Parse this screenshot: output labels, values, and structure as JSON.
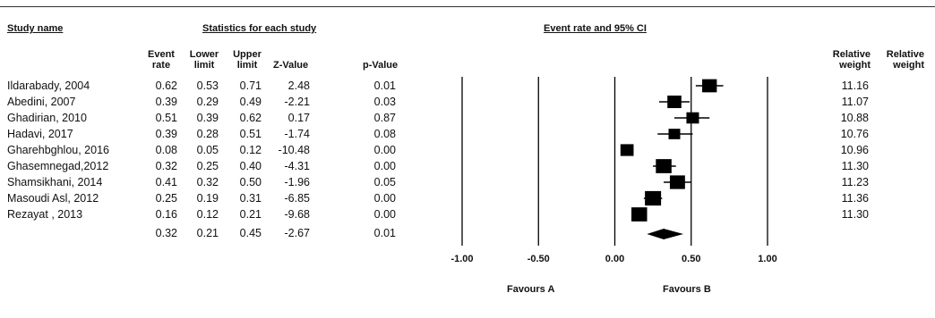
{
  "headers": {
    "study_name": "Study name",
    "statistics": "Statistics for each study",
    "plot_title": "Event rate and 95% CI",
    "event_rate": [
      "Event",
      "rate"
    ],
    "lower_limit": [
      "Lower",
      "limit"
    ],
    "upper_limit": [
      "Upper",
      "limit"
    ],
    "z_value": "Z-Value",
    "p_value": "p-Value",
    "relative_weight_1": [
      "Relative",
      "weight"
    ],
    "relative_weight_2": [
      "Relative",
      "weight"
    ]
  },
  "rows": [
    {
      "study": "Ildarabady, 2004",
      "rate": "0.62",
      "lower": "0.53",
      "upper": "0.71",
      "z": "2.48",
      "p": "0.01",
      "weight": "11.16"
    },
    {
      "study": "Abedini, 2007",
      "rate": "0.39",
      "lower": "0.29",
      "upper": "0.49",
      "z": "-2.21",
      "p": "0.03",
      "weight": "11.07"
    },
    {
      "study": "Ghadirian, 2010",
      "rate": "0.51",
      "lower": "0.39",
      "upper": "0.62",
      "z": "0.17",
      "p": "0.87",
      "weight": "10.88"
    },
    {
      "study": "Hadavi, 2017",
      "rate": "0.39",
      "lower": "0.28",
      "upper": "0.51",
      "z": "-1.74",
      "p": "0.08",
      "weight": "10.76"
    },
    {
      "study": "Gharehbghlou, 2016",
      "rate": "0.08",
      "lower": "0.05",
      "upper": "0.12",
      "z": "-10.48",
      "p": "0.00",
      "weight": "10.96"
    },
    {
      "study": "Ghasemnegad,2012",
      "rate": "0.32",
      "lower": "0.25",
      "upper": "0.40",
      "z": "-4.31",
      "p": "0.00",
      "weight": "11.30"
    },
    {
      "study": "Shamsikhani, 2014",
      "rate": "0.41",
      "lower": "0.32",
      "upper": "0.50",
      "z": "-1.96",
      "p": "0.05",
      "weight": "11.23"
    },
    {
      "study": "Masoudi Asl, 2012",
      "rate": "0.25",
      "lower": "0.19",
      "upper": "0.31",
      "z": "-6.85",
      "p": "0.00",
      "weight": "11.36"
    },
    {
      "study": "Rezayat , 2013",
      "rate": "0.16",
      "lower": "0.12",
      "upper": "0.21",
      "z": "-9.68",
      "p": "0.00",
      "weight": "11.30"
    }
  ],
  "summary": {
    "rate": "0.32",
    "lower": "0.21",
    "upper": "0.45",
    "z": "-2.67",
    "p": "0.01"
  },
  "favours_a": "Favours A",
  "favours_b": "Favours B",
  "chart_data": {
    "type": "forest",
    "title": "Event rate and 95% CI",
    "xlim": [
      -1.0,
      1.0
    ],
    "xticks": [
      -1.0,
      -0.5,
      0.0,
      0.5,
      1.0
    ],
    "xtick_labels": [
      "-1.00",
      "-0.50",
      "0.00",
      "0.50",
      "1.00"
    ],
    "studies": [
      {
        "name": "Ildarabady, 2004",
        "estimate": 0.62,
        "lower": 0.53,
        "upper": 0.71,
        "weight": 11.16
      },
      {
        "name": "Abedini, 2007",
        "estimate": 0.39,
        "lower": 0.29,
        "upper": 0.49,
        "weight": 11.07
      },
      {
        "name": "Ghadirian, 2010",
        "estimate": 0.51,
        "lower": 0.39,
        "upper": 0.62,
        "weight": 10.88
      },
      {
        "name": "Hadavi, 2017",
        "estimate": 0.39,
        "lower": 0.28,
        "upper": 0.51,
        "weight": 10.76
      },
      {
        "name": "Gharehbghlou, 2016",
        "estimate": 0.08,
        "lower": 0.05,
        "upper": 0.12,
        "weight": 10.96
      },
      {
        "name": "Ghasemnegad,2012",
        "estimate": 0.32,
        "lower": 0.25,
        "upper": 0.4,
        "weight": 11.3
      },
      {
        "name": "Shamsikhani, 2014",
        "estimate": 0.41,
        "lower": 0.32,
        "upper": 0.5,
        "weight": 11.23
      },
      {
        "name": "Masoudi Asl, 2012",
        "estimate": 0.25,
        "lower": 0.19,
        "upper": 0.31,
        "weight": 11.36
      },
      {
        "name": "Rezayat , 2013",
        "estimate": 0.16,
        "lower": 0.12,
        "upper": 0.21,
        "weight": 11.3
      }
    ],
    "summary": {
      "estimate": 0.32,
      "lower": 0.21,
      "upper": 0.45
    },
    "marker_color": "#000000",
    "line_color": "#000000"
  }
}
